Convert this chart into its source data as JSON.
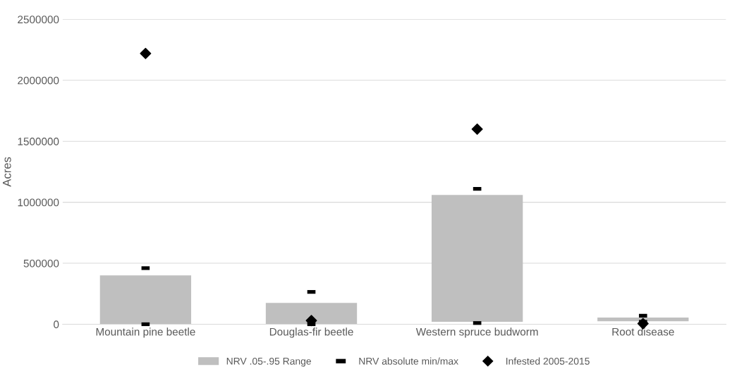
{
  "chart_data": {
    "type": "bar",
    "ylabel": "Acres",
    "categories": [
      "Mountain pine beetle",
      "Douglas-fir beetle",
      "Western spruce budworm",
      "Root disease"
    ],
    "series": [
      {
        "name": "NRV .05-.95 Range",
        "color": "#bfbfbf",
        "base": [
          0,
          0,
          20000,
          25000
        ],
        "values": [
          400000,
          175000,
          1040000,
          30000
        ]
      },
      {
        "name": "NRV absolute min/max",
        "type": "scatter",
        "marker": "square",
        "color": "#000000",
        "values": [
          460000,
          265000,
          1110000,
          70000
        ]
      },
      {
        "type": "scatter",
        "marker": "square",
        "color": "#000000",
        "values": [
          0,
          0,
          10000,
          20000
        ]
      },
      {
        "name": "Infested 2005-2015",
        "type": "scatter",
        "marker": "diamond",
        "color": "#000000",
        "values": [
          2220000,
          30000,
          1600000,
          5000
        ]
      }
    ],
    "ylim": [
      0,
      2500000
    ],
    "yticks": [
      0,
      500000,
      1000000,
      1500000,
      2000000,
      2500000
    ],
    "grid": "y",
    "legend": "bottom"
  }
}
